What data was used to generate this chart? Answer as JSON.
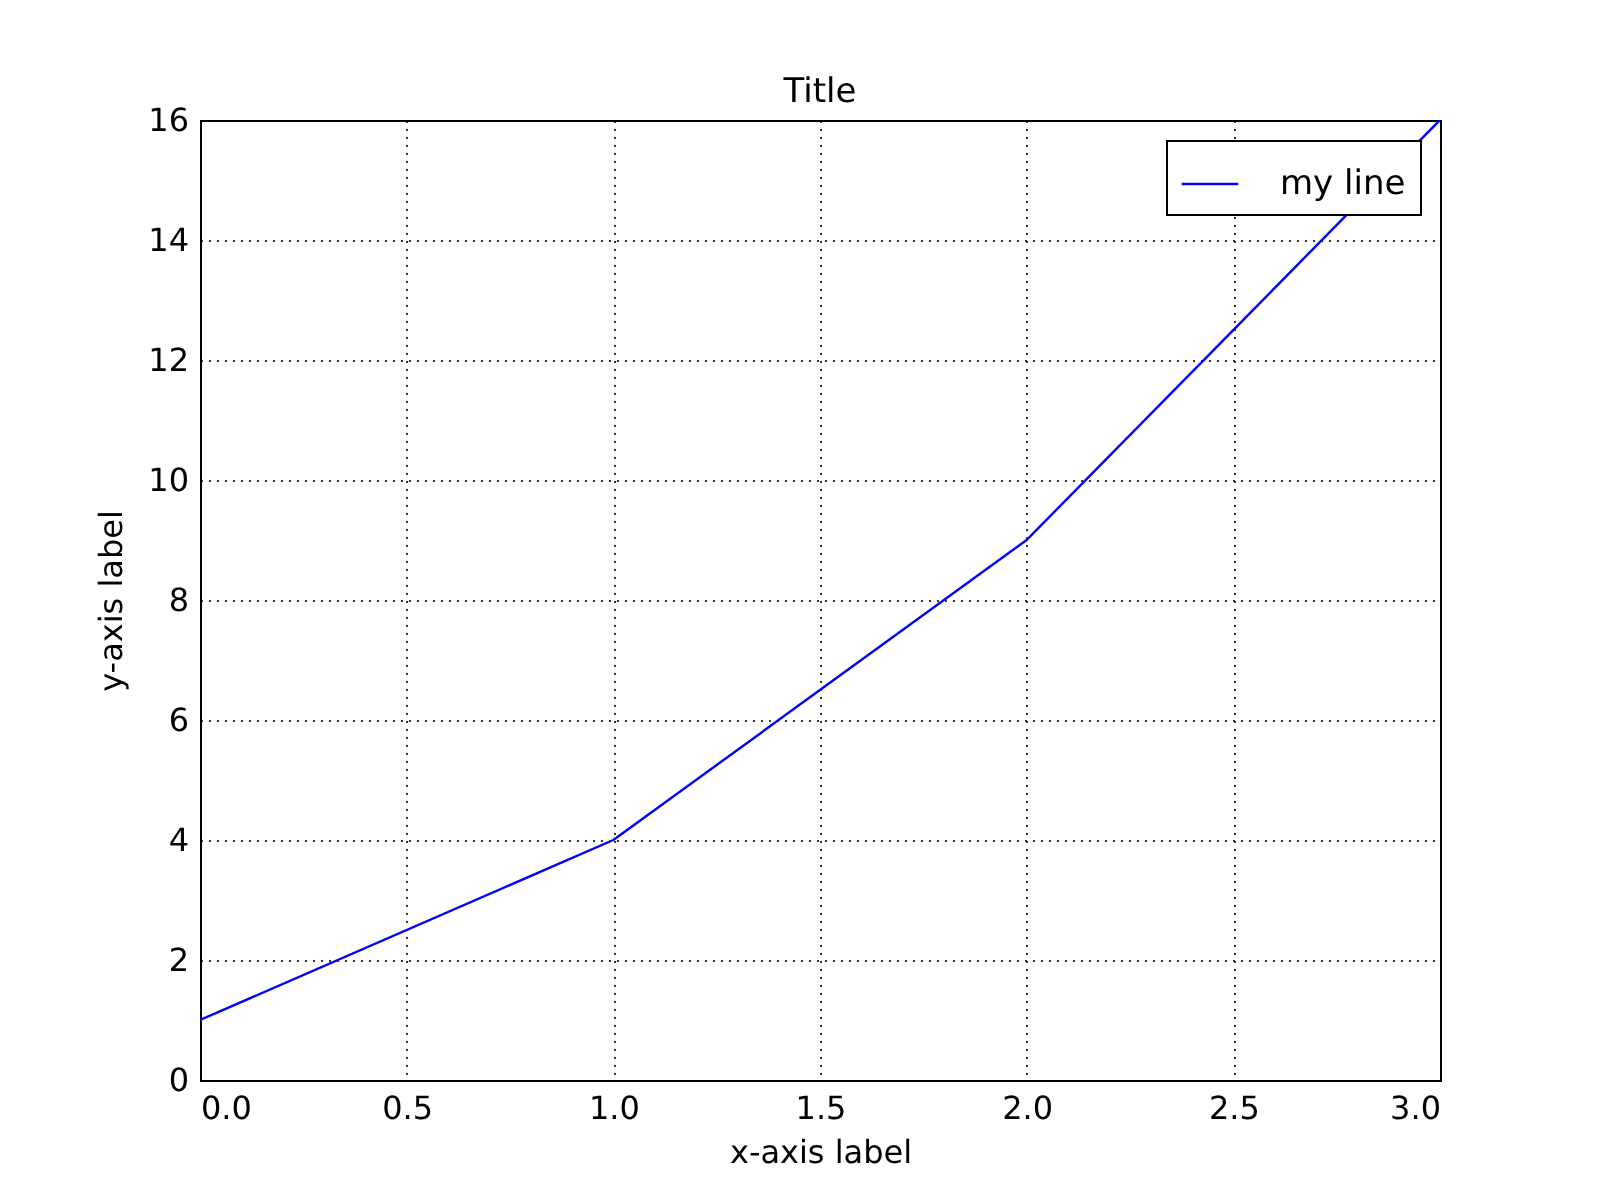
{
  "chart_data": {
    "type": "line",
    "title": "Title",
    "xlabel": "x-axis label",
    "ylabel": "y-axis label",
    "x": [
      0,
      1,
      2,
      3
    ],
    "series": [
      {
        "name": "my line",
        "color": "#0000ff",
        "values": [
          1,
          4,
          9,
          16
        ]
      }
    ],
    "xlim": [
      0,
      3
    ],
    "ylim": [
      0,
      16
    ],
    "xticks": [
      {
        "value": 0,
        "label": "0.0"
      },
      0.5,
      {
        "value": 1,
        "label": "1.0"
      },
      1.5,
      {
        "value": 2,
        "label": "2.0"
      },
      2.5,
      {
        "value": 3,
        "label": "3.0"
      }
    ],
    "yticks": [
      0,
      2,
      4,
      6,
      8,
      10,
      12,
      14,
      16
    ],
    "grid": true,
    "legend": "top right",
    "line_style": "solid"
  }
}
